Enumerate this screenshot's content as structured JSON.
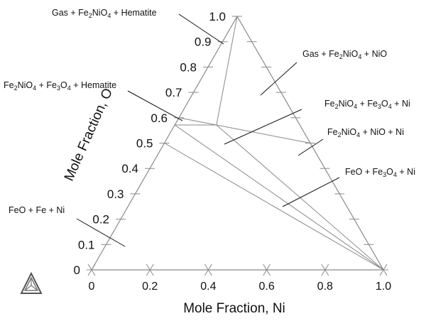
{
  "diagram": {
    "type": "ternary-phase-diagram",
    "axes": {
      "bottom_title": "Mole Fraction, Ni",
      "left_title": "Mole Fraction, O",
      "bottom_ticks": [
        "0",
        "0.2",
        "0.4",
        "0.6",
        "0.8",
        "1.0"
      ],
      "left_ticks": [
        "0",
        "0.1",
        "0.2",
        "0.3",
        "0.4",
        "0.5",
        "0.6",
        "0.7",
        "0.8",
        "0.9",
        "1.0"
      ]
    },
    "phase_points": [
      {
        "name": "O",
        "ni": 0.0,
        "o": 1.0
      },
      {
        "name": "Ni",
        "ni": 1.0,
        "o": 0.0
      },
      {
        "name": "Fe",
        "ni": 0.0,
        "o": 0.0
      },
      {
        "name": "Fe2O3",
        "ni": 0.0,
        "o": 0.6
      },
      {
        "name": "Fe3O4",
        "ni": 0.0,
        "o": 0.5714
      },
      {
        "name": "NiFe2O4",
        "ni": 0.1429,
        "o": 0.5714
      },
      {
        "name": "NiO",
        "ni": 0.5,
        "o": 0.5
      },
      {
        "name": "Gas",
        "ni": 0.0,
        "o": 1.0
      },
      {
        "name": "FeO",
        "ni": 0.0,
        "o": 0.5
      }
    ],
    "tie_lines": [
      [
        "Gas",
        "NiFe2O4"
      ],
      [
        "Fe2O3",
        "NiFe2O4"
      ],
      [
        "Fe3O4",
        "NiFe2O4"
      ],
      [
        "NiFe2O4",
        "NiO"
      ],
      [
        "NiFe2O4",
        "Ni"
      ],
      [
        "Fe3O4",
        "Ni"
      ],
      [
        "FeO",
        "Ni"
      ]
    ],
    "region_labels": [
      {
        "id": "gas-fe2nio4-hematite",
        "parts": [
          [
            "Gas + Fe",
            ""
          ],
          [
            "2",
            "sub"
          ],
          [
            "NiO",
            ""
          ],
          [
            "4",
            "sub"
          ],
          [
            " + Hematite",
            ""
          ]
        ]
      },
      {
        "id": "gas-fe2nio4-nio",
        "parts": [
          [
            "Gas + Fe",
            ""
          ],
          [
            "2",
            "sub"
          ],
          [
            "NiO",
            ""
          ],
          [
            "4",
            "sub"
          ],
          [
            " + NiO",
            ""
          ]
        ]
      },
      {
        "id": "fe2nio4-fe3o4-hematite",
        "parts": [
          [
            "Fe",
            ""
          ],
          [
            "2",
            "sub"
          ],
          [
            "NiO",
            ""
          ],
          [
            "4",
            "sub"
          ],
          [
            " + Fe",
            ""
          ],
          [
            "3",
            "sub"
          ],
          [
            "O",
            ""
          ],
          [
            "4",
            "sub"
          ],
          [
            " + Hematite",
            ""
          ]
        ]
      },
      {
        "id": "fe2nio4-fe3o4-ni",
        "parts": [
          [
            "Fe",
            ""
          ],
          [
            "2",
            "sub"
          ],
          [
            "NiO",
            ""
          ],
          [
            "4",
            "sub"
          ],
          [
            " + Fe",
            ""
          ],
          [
            "3",
            "sub"
          ],
          [
            "O",
            ""
          ],
          [
            "4",
            "sub"
          ],
          [
            " + Ni",
            ""
          ]
        ]
      },
      {
        "id": "fe2nio4-nio-ni",
        "parts": [
          [
            "Fe",
            ""
          ],
          [
            "2",
            "sub"
          ],
          [
            "NiO",
            ""
          ],
          [
            "4",
            "sub"
          ],
          [
            " + NiO + Ni",
            ""
          ]
        ]
      },
      {
        "id": "feo-fe3o4-ni",
        "parts": [
          [
            "FeO + Fe",
            ""
          ],
          [
            "3",
            "sub"
          ],
          [
            "O",
            ""
          ],
          [
            "4",
            "sub"
          ],
          [
            " + Ni",
            ""
          ]
        ]
      },
      {
        "id": "feo-fe-ni",
        "parts": [
          [
            "FeO + Fe + Ni",
            ""
          ]
        ]
      }
    ],
    "colors": {
      "triangle": "#8a8a8a",
      "tie_line": "#8a8a8a",
      "leader": "#111111",
      "text": "#111111"
    },
    "logo_icon": "thermo-calc-triangle-logo"
  }
}
